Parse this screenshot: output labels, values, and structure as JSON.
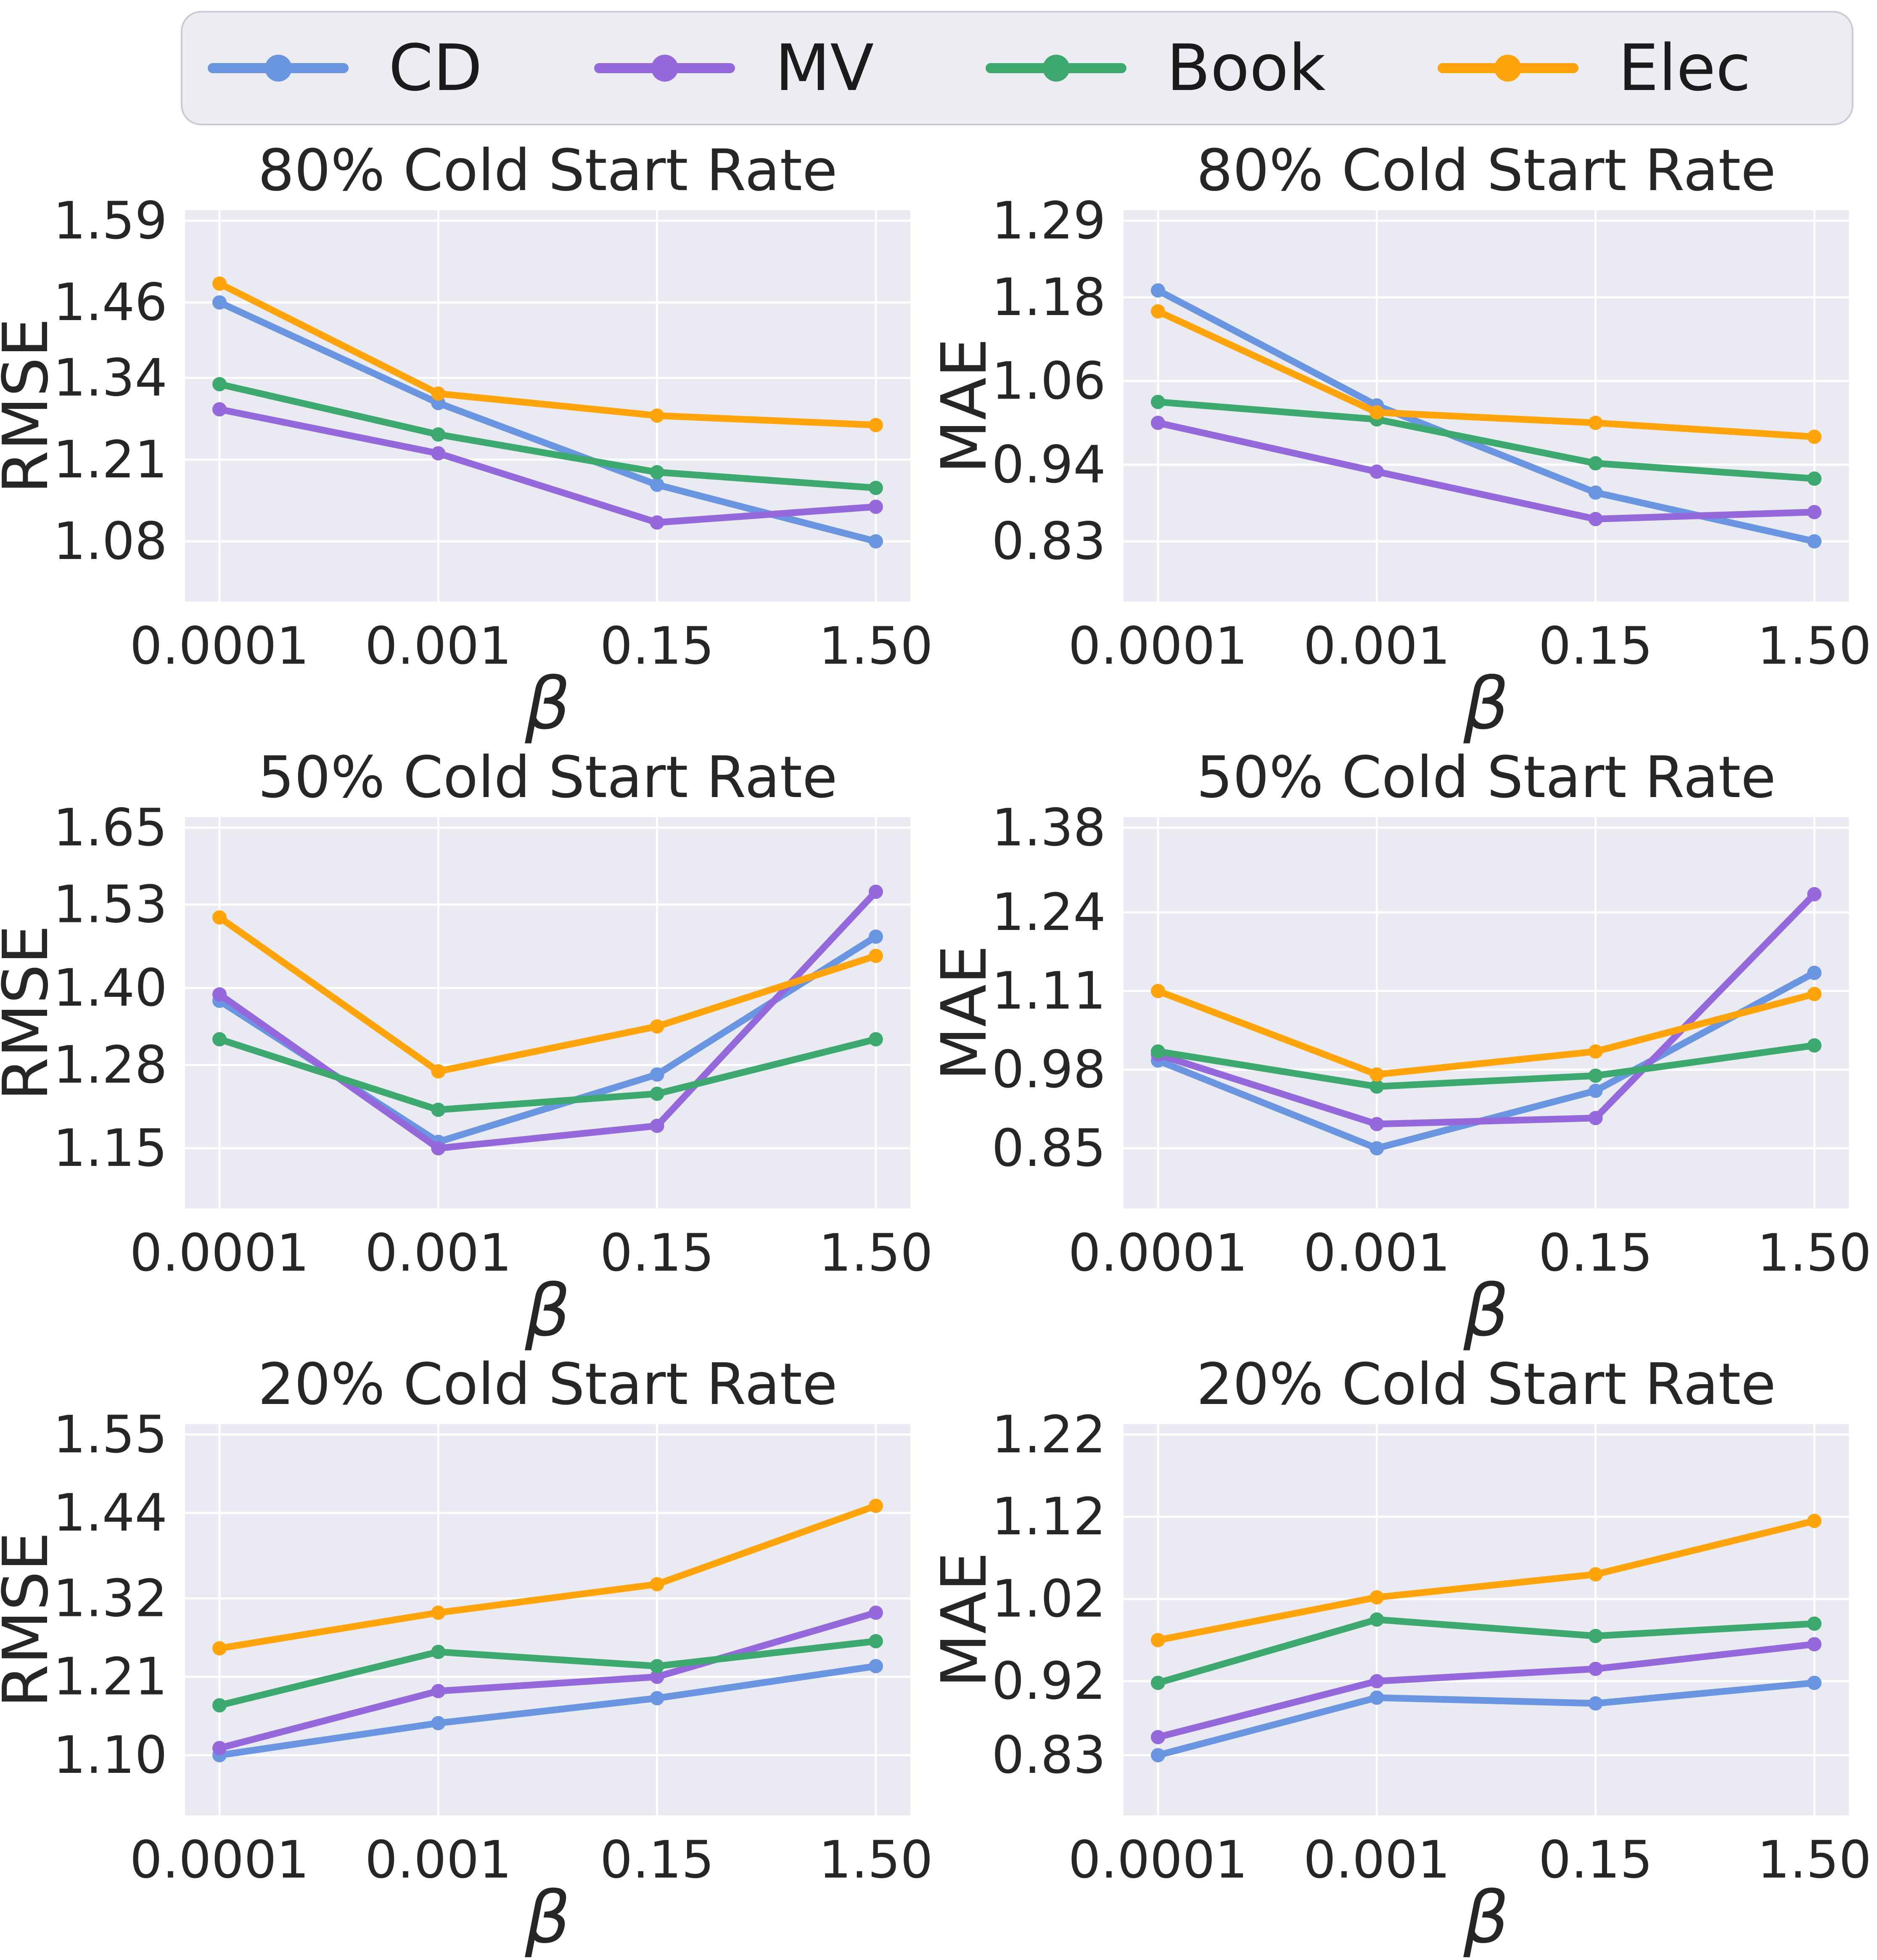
{
  "colors": {
    "CD": "#6a95e1",
    "MV": "#9569db",
    "Book": "#3da96f",
    "Elec": "#ffa50b"
  },
  "styles": {
    "plot_background": "#eaeaf2",
    "grid_color": "#ffffff",
    "tick_text_color": "#262626",
    "title_text_color": "#1b1b1b",
    "legend_background": "#ececf3",
    "legend_border": "#cbcbd6"
  },
  "legend": {
    "items": [
      {
        "label": "CD",
        "series": "CD"
      },
      {
        "label": "MV",
        "series": "MV"
      },
      {
        "label": "Book",
        "series": "Book"
      },
      {
        "label": "Elec",
        "series": "Elec"
      }
    ]
  },
  "chart_data": [
    {
      "type": "line",
      "title": "80% Cold Start Rate",
      "xlabel": "β",
      "ylabel": "RMSE",
      "categories": [
        "0.0001",
        "0.001",
        "0.15",
        "1.50"
      ],
      "yticks": [
        1.08,
        1.21,
        1.34,
        1.46,
        1.59
      ],
      "grid": true,
      "legend_position": "figure-top",
      "series": [
        {
          "name": "CD",
          "values": [
            1.46,
            1.3,
            1.17,
            1.08
          ]
        },
        {
          "name": "MV",
          "values": [
            1.29,
            1.22,
            1.11,
            1.135
          ]
        },
        {
          "name": "Book",
          "values": [
            1.33,
            1.25,
            1.19,
            1.165
          ]
        },
        {
          "name": "Elec",
          "values": [
            1.49,
            1.315,
            1.28,
            1.265
          ]
        }
      ]
    },
    {
      "type": "line",
      "title": "80% Cold Start Rate",
      "xlabel": "β",
      "ylabel": "MAE",
      "categories": [
        "0.0001",
        "0.001",
        "0.15",
        "1.50"
      ],
      "yticks": [
        0.83,
        0.94,
        1.06,
        1.18,
        1.29
      ],
      "grid": true,
      "legend_position": "figure-top",
      "series": [
        {
          "name": "CD",
          "values": [
            1.19,
            1.025,
            0.9,
            0.83
          ]
        },
        {
          "name": "MV",
          "values": [
            1.0,
            0.93,
            0.862,
            0.872
          ]
        },
        {
          "name": "Book",
          "values": [
            1.03,
            1.005,
            0.942,
            0.92
          ]
        },
        {
          "name": "Elec",
          "values": [
            1.16,
            1.015,
            1.0,
            0.98
          ]
        }
      ]
    },
    {
      "type": "line",
      "title": "50% Cold Start Rate",
      "xlabel": "β",
      "ylabel": "RMSE",
      "categories": [
        "0.0001",
        "0.001",
        "0.15",
        "1.50"
      ],
      "yticks": [
        1.15,
        1.28,
        1.4,
        1.53,
        1.65
      ],
      "grid": true,
      "legend_position": "figure-top",
      "series": [
        {
          "name": "CD",
          "values": [
            1.38,
            1.16,
            1.265,
            1.48
          ]
        },
        {
          "name": "MV",
          "values": [
            1.39,
            1.15,
            1.185,
            1.55
          ]
        },
        {
          "name": "Book",
          "values": [
            1.32,
            1.21,
            1.235,
            1.32
          ]
        },
        {
          "name": "Elec",
          "values": [
            1.51,
            1.27,
            1.34,
            1.45
          ]
        }
      ]
    },
    {
      "type": "line",
      "title": "50% Cold Start Rate",
      "xlabel": "β",
      "ylabel": "MAE",
      "categories": [
        "0.0001",
        "0.001",
        "0.15",
        "1.50"
      ],
      "yticks": [
        0.85,
        0.98,
        1.11,
        1.24,
        1.38
      ],
      "grid": true,
      "legend_position": "figure-top",
      "series": [
        {
          "name": "CD",
          "values": [
            0.995,
            0.85,
            0.945,
            1.14
          ]
        },
        {
          "name": "MV",
          "values": [
            1.005,
            0.89,
            0.9,
            1.27
          ]
        },
        {
          "name": "Book",
          "values": [
            1.01,
            0.952,
            0.97,
            1.02
          ]
        },
        {
          "name": "Elec",
          "values": [
            1.11,
            0.972,
            1.01,
            1.105
          ]
        }
      ]
    },
    {
      "type": "line",
      "title": "20% Cold Start Rate",
      "xlabel": "β",
      "ylabel": "RMSE",
      "categories": [
        "0.0001",
        "0.001",
        "0.15",
        "1.50"
      ],
      "yticks": [
        1.1,
        1.21,
        1.32,
        1.44,
        1.55
      ],
      "grid": true,
      "legend_position": "figure-top",
      "series": [
        {
          "name": "CD",
          "values": [
            1.1,
            1.145,
            1.18,
            1.225
          ]
        },
        {
          "name": "MV",
          "values": [
            1.11,
            1.19,
            1.21,
            1.3
          ]
        },
        {
          "name": "Book",
          "values": [
            1.17,
            1.245,
            1.225,
            1.26
          ]
        },
        {
          "name": "Elec",
          "values": [
            1.25,
            1.3,
            1.34,
            1.45
          ]
        }
      ]
    },
    {
      "type": "line",
      "title": "20% Cold Start Rate",
      "xlabel": "β",
      "ylabel": "MAE",
      "categories": [
        "0.0001",
        "0.001",
        "0.15",
        "1.50"
      ],
      "yticks": [
        0.83,
        0.92,
        1.02,
        1.12,
        1.22
      ],
      "grid": true,
      "legend_position": "figure-top",
      "series": [
        {
          "name": "CD",
          "values": [
            0.83,
            0.9,
            0.893,
            0.918
          ]
        },
        {
          "name": "MV",
          "values": [
            0.852,
            0.92,
            0.935,
            0.965
          ]
        },
        {
          "name": "Book",
          "values": [
            0.918,
            0.995,
            0.975,
            0.99
          ]
        },
        {
          "name": "Elec",
          "values": [
            0.97,
            1.022,
            1.05,
            1.115
          ]
        }
      ]
    }
  ]
}
